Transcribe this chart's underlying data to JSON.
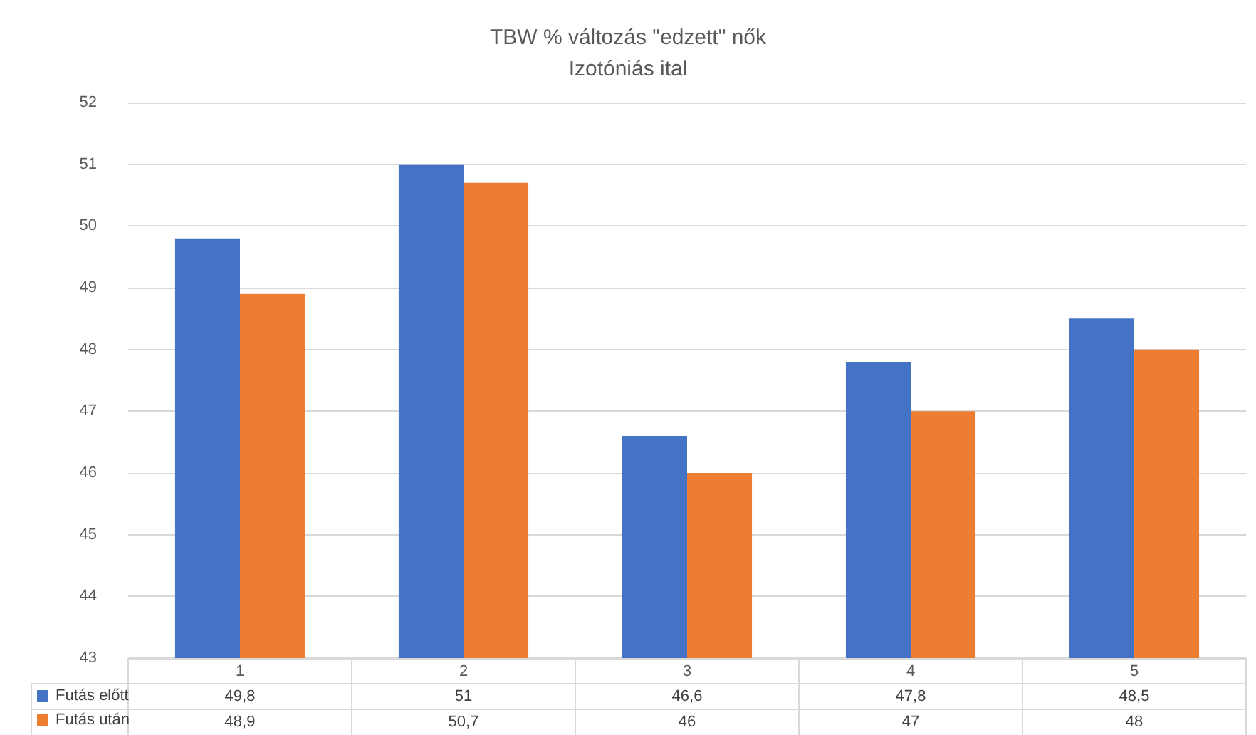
{
  "chart_data": {
    "type": "bar",
    "title": "TBW % változás \"edzett\" nők",
    "subtitle": "Izotóniás ital",
    "categories": [
      "1",
      "2",
      "3",
      "4",
      "5"
    ],
    "series": [
      {
        "name": "Futás előtt",
        "color": "#4472c4",
        "values": [
          49.8,
          51,
          46.6,
          47.8,
          48.5
        ],
        "value_labels": [
          "49,8",
          "51",
          "46,6",
          "47,8",
          "48,5"
        ]
      },
      {
        "name": "Futás után",
        "color": "#ed7d31",
        "values": [
          48.9,
          50.7,
          46,
          47,
          48
        ],
        "value_labels": [
          "48,9",
          "50,7",
          "46",
          "47",
          "48"
        ]
      }
    ],
    "ylim": [
      43,
      52
    ],
    "yticks": [
      43,
      44,
      45,
      46,
      47,
      48,
      49,
      50,
      51,
      52
    ],
    "grid": "y",
    "legend": "bottom left"
  }
}
